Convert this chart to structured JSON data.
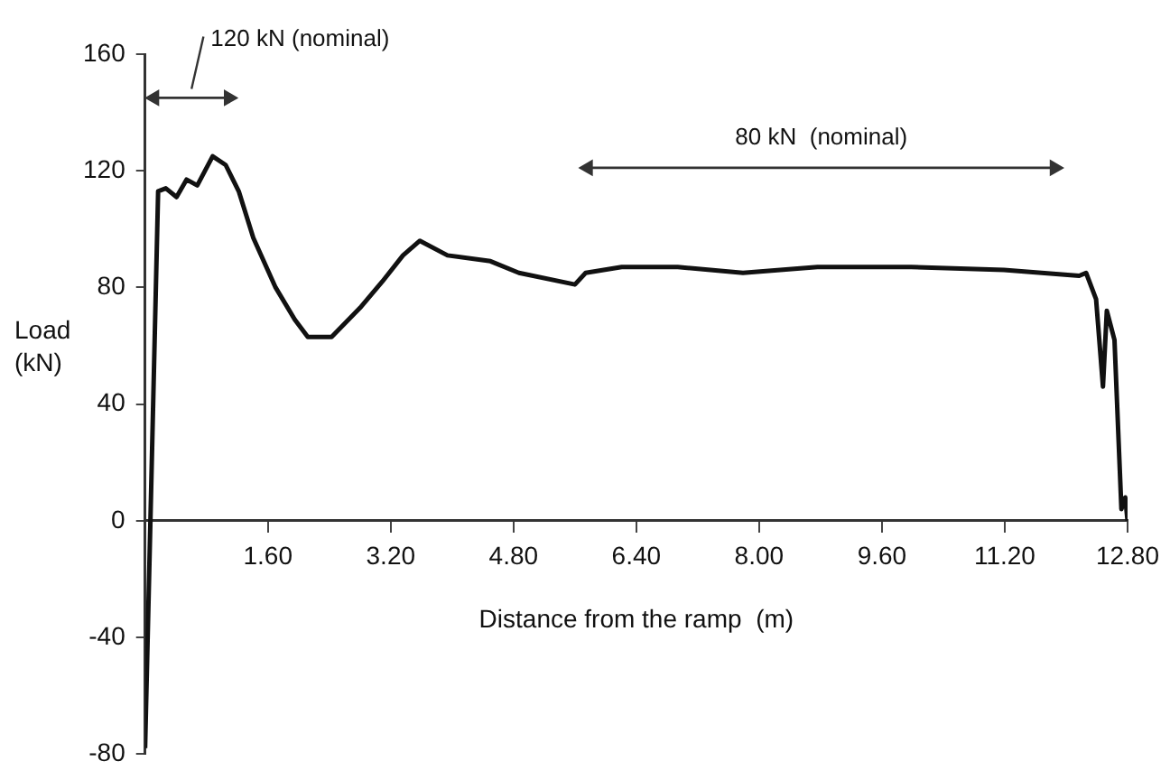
{
  "chart_data": {
    "type": "line",
    "xlabel": "Distance from the ramp  (m)",
    "ylabel": "Load (kN)",
    "x": [
      0,
      0.17,
      0.27,
      0.41,
      0.54,
      0.68,
      0.88,
      1.05,
      1.22,
      1.41,
      1.7,
      1.95,
      2.12,
      2.43,
      2.8,
      3.09,
      3.36,
      3.58,
      3.94,
      4.5,
      4.87,
      5.6,
      5.74,
      6.21,
      6.94,
      7.79,
      8.76,
      9.98,
      11.19,
      12.17,
      12.26,
      12.39,
      12.48,
      12.53,
      12.63,
      12.72,
      12.77,
      12.8
    ],
    "series": [
      {
        "color": "#111111",
        "values": [
          -78,
          113,
          114,
          111,
          117,
          115,
          125,
          122,
          113,
          97,
          80,
          69,
          63,
          63,
          73,
          82,
          91,
          96,
          91,
          89,
          85,
          81,
          85,
          87,
          87,
          85,
          87,
          87,
          86,
          84,
          85,
          76,
          46,
          72,
          62,
          4,
          8,
          0
        ]
      },
      {
        "name": "120 kN (nominal)",
        "color": "#333333",
        "marker": "triangle",
        "x": [
          0.12,
          1.09
        ],
        "values": [
          145,
          145
        ]
      },
      {
        "name": "80 kN  (nominal)",
        "color": "#333333",
        "marker": "triangle",
        "x": [
          5.77,
          11.85
        ],
        "values": [
          121,
          121
        ]
      }
    ],
    "xlim": [
      0,
      12.8
    ],
    "ylim": [
      -80,
      160
    ],
    "xticks": [
      {
        "value": 1.6,
        "label": "1.60"
      },
      {
        "value": 3.2,
        "label": "3.20"
      },
      {
        "value": 4.8,
        "label": "4.80"
      },
      {
        "value": 6.4,
        "label": "6.40"
      },
      {
        "value": 8,
        "label": "8.00"
      },
      {
        "value": 9.6,
        "label": "9.60"
      },
      {
        "value": 11.2,
        "label": "11.20"
      },
      {
        "value": 12.8,
        "label": "12.80"
      }
    ],
    "yticks": [
      -80,
      -40,
      0,
      40,
      80,
      120,
      160
    ],
    "grid": false,
    "legend": false,
    "marker": "none",
    "line_style": "solid"
  }
}
